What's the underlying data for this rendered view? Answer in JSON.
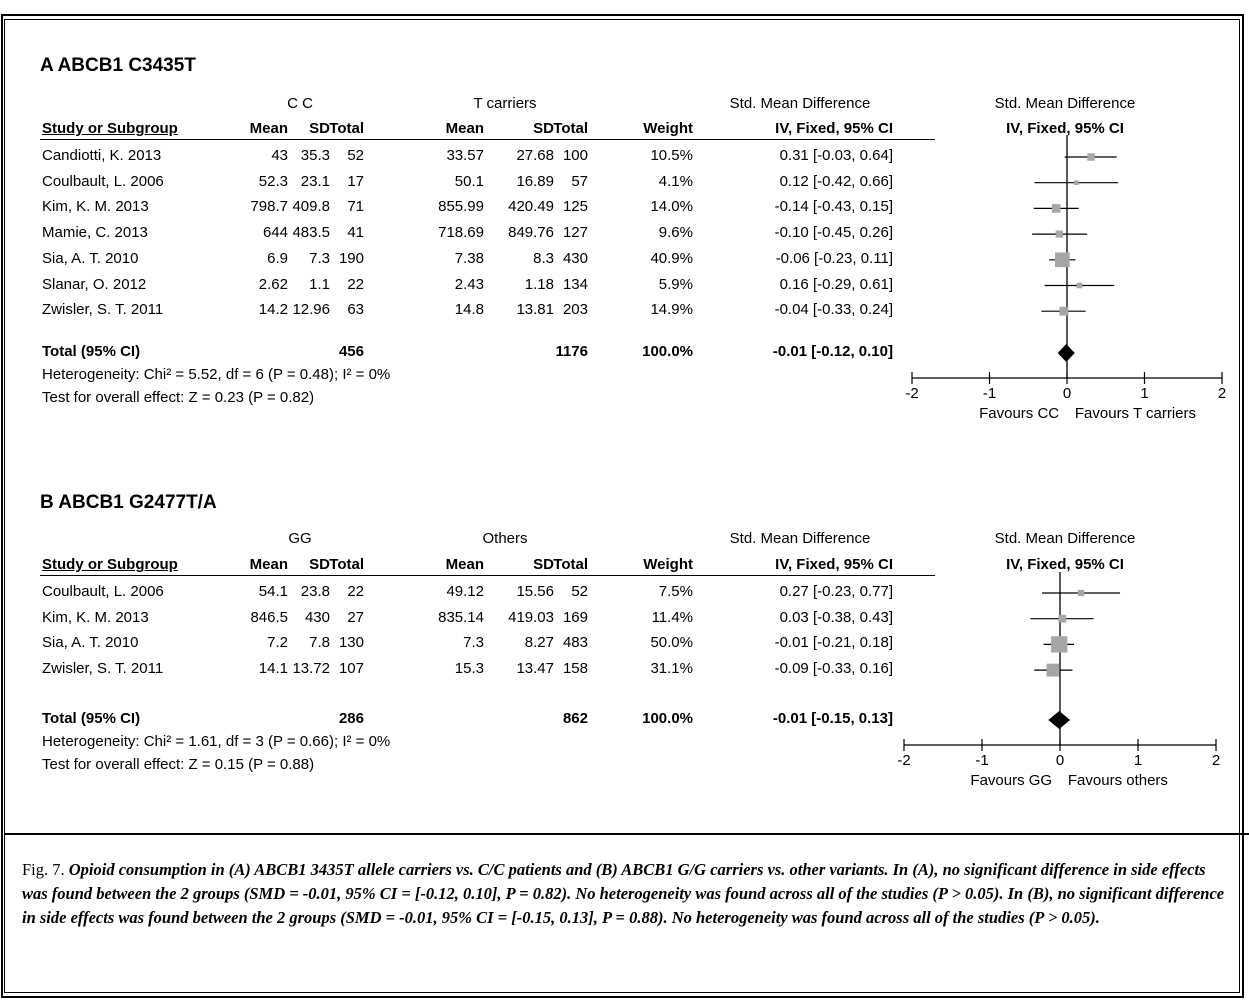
{
  "chart_data": [
    {
      "type": "forest",
      "panel_title": "A ABCB1 C3435T",
      "group1": "C C",
      "group2": "T carriers",
      "headers": {
        "study": "Study or Subgroup",
        "mean": "Mean",
        "sd": "SD",
        "total": "Total",
        "weight": "Weight",
        "effect_title": "Std. Mean Difference",
        "effect_sub": "IV, Fixed, 95% CI"
      },
      "rows": [
        {
          "study": "Candiotti, K. 2013",
          "m1": "43",
          "sd1": "35.3",
          "n1": "52",
          "m2": "33.57",
          "sd2": "27.68",
          "n2": "100",
          "weight": "10.5%",
          "ci": "0.31 [-0.03, 0.64]",
          "smd": 0.31,
          "lo": -0.03,
          "hi": 0.64,
          "w": 10.5
        },
        {
          "study": "Coulbault, L. 2006",
          "m1": "52.3",
          "sd1": "23.1",
          "n1": "17",
          "m2": "50.1",
          "sd2": "16.89",
          "n2": "57",
          "weight": "4.1%",
          "ci": "0.12 [-0.42, 0.66]",
          "smd": 0.12,
          "lo": -0.42,
          "hi": 0.66,
          "w": 4.1
        },
        {
          "study": "Kim, K. M. 2013",
          "m1": "798.7",
          "sd1": "409.8",
          "n1": "71",
          "m2": "855.99",
          "sd2": "420.49",
          "n2": "125",
          "weight": "14.0%",
          "ci": "-0.14 [-0.43, 0.15]",
          "smd": -0.14,
          "lo": -0.43,
          "hi": 0.15,
          "w": 14.0
        },
        {
          "study": "Mamie, C. 2013",
          "m1": "644",
          "sd1": "483.5",
          "n1": "41",
          "m2": "718.69",
          "sd2": "849.76",
          "n2": "127",
          "weight": "9.6%",
          "ci": "-0.10 [-0.45, 0.26]",
          "smd": -0.1,
          "lo": -0.45,
          "hi": 0.26,
          "w": 9.6
        },
        {
          "study": "Sia, A. T. 2010",
          "m1": "6.9",
          "sd1": "7.3",
          "n1": "190",
          "m2": "7.38",
          "sd2": "8.3",
          "n2": "430",
          "weight": "40.9%",
          "ci": "-0.06 [-0.23, 0.11]",
          "smd": -0.06,
          "lo": -0.23,
          "hi": 0.11,
          "w": 40.9
        },
        {
          "study": "Slanar, O. 2012",
          "m1": "2.62",
          "sd1": "1.1",
          "n1": "22",
          "m2": "2.43",
          "sd2": "1.18",
          "n2": "134",
          "weight": "5.9%",
          "ci": "0.16 [-0.29, 0.61]",
          "smd": 0.16,
          "lo": -0.29,
          "hi": 0.61,
          "w": 5.9
        },
        {
          "study": "Zwisler, S. T. 2011",
          "m1": "14.2",
          "sd1": "12.96",
          "n1": "63",
          "m2": "14.8",
          "sd2": "13.81",
          "n2": "203",
          "weight": "14.9%",
          "ci": "-0.04 [-0.33, 0.24]",
          "smd": -0.04,
          "lo": -0.33,
          "hi": 0.24,
          "w": 14.9
        }
      ],
      "total": {
        "label": "Total (95% CI)",
        "n1": "456",
        "n2": "1176",
        "weight": "100.0%",
        "ci": "-0.01 [-0.12, 0.10]",
        "smd": -0.01,
        "lo": -0.12,
        "hi": 0.1
      },
      "heterogeneity": "Heterogeneity: Chi² = 5.52, df = 6 (P = 0.48); I² = 0%",
      "overall": "Test for overall effect: Z = 0.23 (P = 0.82)",
      "xlim": [
        -2,
        2
      ],
      "ticks": [
        "-2",
        "-1",
        "0",
        "1",
        "2"
      ],
      "favours_left": "Favours CC",
      "favours_right": "Favours T carriers"
    },
    {
      "type": "forest",
      "panel_title": "B ABCB1 G2477T/A",
      "group1": "GG",
      "group2": "Others",
      "headers": {
        "study": "Study or Subgroup",
        "mean": "Mean",
        "sd": "SD",
        "total": "Total",
        "weight": "Weight",
        "effect_title": "Std. Mean Difference",
        "effect_sub": "IV, Fixed, 95% CI"
      },
      "rows": [
        {
          "study": "Coulbault, L. 2006",
          "m1": "54.1",
          "sd1": "23.8",
          "n1": "22",
          "m2": "49.12",
          "sd2": "15.56",
          "n2": "52",
          "weight": "7.5%",
          "ci": "0.27 [-0.23, 0.77]",
          "smd": 0.27,
          "lo": -0.23,
          "hi": 0.77,
          "w": 7.5
        },
        {
          "study": "Kim, K. M. 2013",
          "m1": "846.5",
          "sd1": "430",
          "n1": "27",
          "m2": "835.14",
          "sd2": "419.03",
          "n2": "169",
          "weight": "11.4%",
          "ci": "0.03 [-0.38, 0.43]",
          "smd": 0.03,
          "lo": -0.38,
          "hi": 0.43,
          "w": 11.4
        },
        {
          "study": "Sia, A. T. 2010",
          "m1": "7.2",
          "sd1": "7.8",
          "n1": "130",
          "m2": "7.3",
          "sd2": "8.27",
          "n2": "483",
          "weight": "50.0%",
          "ci": "-0.01 [-0.21, 0.18]",
          "smd": -0.01,
          "lo": -0.21,
          "hi": 0.18,
          "w": 50.0
        },
        {
          "study": "Zwisler, S. T. 2011",
          "m1": "14.1",
          "sd1": "13.72",
          "n1": "107",
          "m2": "15.3",
          "sd2": "13.47",
          "n2": "158",
          "weight": "31.1%",
          "ci": "-0.09 [-0.33, 0.16]",
          "smd": -0.09,
          "lo": -0.33,
          "hi": 0.16,
          "w": 31.1
        }
      ],
      "total": {
        "label": "Total (95% CI)",
        "n1": "286",
        "n2": "862",
        "weight": "100.0%",
        "ci": "-0.01 [-0.15, 0.13]",
        "smd": -0.01,
        "lo": -0.15,
        "hi": 0.13
      },
      "heterogeneity": "Heterogeneity: Chi² = 1.61, df = 3 (P = 0.66); I² = 0%",
      "overall": "Test for overall effect: Z = 0.15 (P = 0.88)",
      "xlim": [
        -2,
        2
      ],
      "ticks": [
        "-2",
        "-1",
        "0",
        "1",
        "2"
      ],
      "favours_left": "Favours GG",
      "favours_right": "Favours others"
    }
  ],
  "caption": {
    "figure": "Fig. 7.",
    "text": "Opioid consumption in (A) ABCB1 3435T allele carriers vs. C/C patients and (B) ABCB1 G/G carriers vs. other variants. In (A), no significant difference in side effects was found between the 2 groups (SMD = -0.01, 95% CI = [-0.12, 0.10], P = 0.82). No heterogeneity was found across all of the studies (P > 0.05). In (B), no significant difference in side effects was found between the 2 groups (SMD = -0.01, 95% CI = [-0.15, 0.13], P = 0.88). No heterogeneity was found across all of the studies (P > 0.05)."
  },
  "colors": {
    "marker": "#a6a6a6",
    "diamond": "#000000",
    "line": "#000000"
  }
}
